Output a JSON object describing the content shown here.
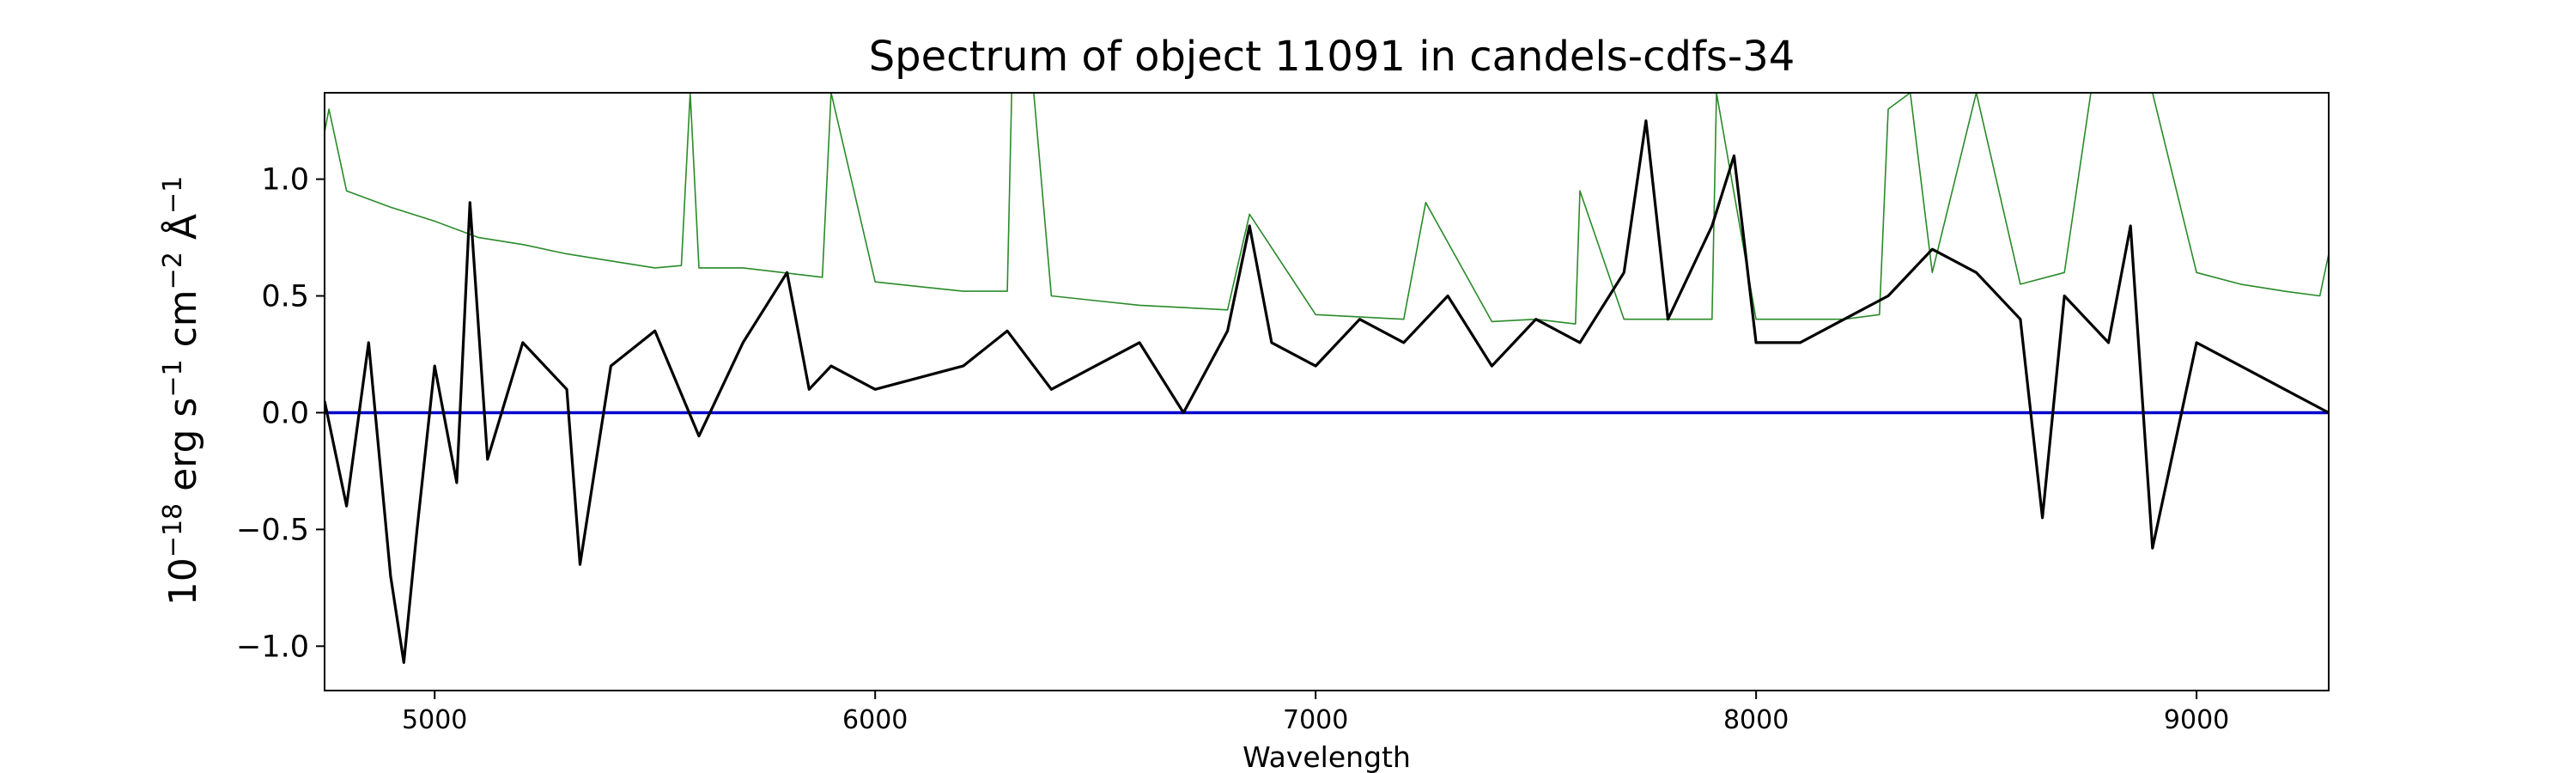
{
  "chart_data": {
    "type": "line",
    "title": "Spectrum of object 11091 in candels-cdfs-34",
    "xlabel": "Wavelength",
    "ylabel": {
      "base": "10",
      "exp": "−18",
      "unit1": " erg s",
      "unit1_exp": "−1",
      "unit2": " cm",
      "unit2_exp": "−2",
      "unit3": " Å",
      "unit3_exp": "−1"
    },
    "xlim": [
      4750,
      9300
    ],
    "ylim": [
      -1.19,
      1.37
    ],
    "xticks": [
      5000,
      6000,
      7000,
      8000,
      9000
    ],
    "xtick_labels": [
      "5000",
      "6000",
      "7000",
      "8000",
      "9000"
    ],
    "yticks": [
      -1.0,
      -0.5,
      0.0,
      0.5,
      1.0
    ],
    "ytick_labels": [
      "−1.0",
      "−0.5",
      "0.0",
      "0.5",
      "1.0"
    ],
    "grid": false,
    "colors": {
      "flux": "#000000",
      "error": "#2a8a2a",
      "zero": "#0000cc"
    },
    "series": [
      {
        "role": "flux",
        "x": [
          4750,
          4800,
          4850,
          4900,
          4930,
          4960,
          5000,
          5050,
          5080,
          5120,
          5200,
          5300,
          5330,
          5400,
          5500,
          5600,
          5700,
          5800,
          5850,
          5900,
          6000,
          6100,
          6200,
          6300,
          6400,
          6500,
          6600,
          6700,
          6800,
          6850,
          6900,
          7000,
          7100,
          7200,
          7300,
          7400,
          7500,
          7600,
          7700,
          7750,
          7800,
          7900,
          7950,
          8000,
          8100,
          8200,
          8300,
          8400,
          8500,
          8600,
          8650,
          8700,
          8800,
          8850,
          8900,
          9000,
          9100,
          9200,
          9300
        ],
        "y": [
          0.05,
          -0.4,
          0.3,
          -0.7,
          -1.07,
          -0.5,
          0.2,
          -0.3,
          0.9,
          -0.2,
          0.3,
          0.1,
          -0.65,
          0.2,
          0.35,
          -0.1,
          0.3,
          0.6,
          0.1,
          0.2,
          0.1,
          0.15,
          0.2,
          0.35,
          0.1,
          0.2,
          0.3,
          0.0,
          0.35,
          0.8,
          0.3,
          0.2,
          0.4,
          0.3,
          0.5,
          0.2,
          0.4,
          0.3,
          0.6,
          1.25,
          0.4,
          0.8,
          1.1,
          0.3,
          0.3,
          0.4,
          0.5,
          0.7,
          0.6,
          0.4,
          -0.45,
          0.5,
          0.3,
          0.8,
          -0.58,
          0.3,
          0.2,
          0.1,
          0.0
        ]
      },
      {
        "role": "error",
        "x": [
          4750,
          4760,
          4800,
          4900,
          5000,
          5100,
          5200,
          5300,
          5400,
          5500,
          5560,
          5580,
          5600,
          5700,
          5880,
          5900,
          6000,
          6100,
          6200,
          6300,
          6310,
          6360,
          6400,
          6500,
          6600,
          6700,
          6800,
          6850,
          7000,
          7200,
          7250,
          7400,
          7500,
          7590,
          7600,
          7700,
          7900,
          7910,
          8000,
          8100,
          8200,
          8280,
          8300,
          8350,
          8400,
          8500,
          8600,
          8700,
          8760,
          8800,
          8900,
          9000,
          9100,
          9200,
          9280,
          9300
        ],
        "y": [
          1.2,
          1.3,
          0.95,
          0.88,
          0.82,
          0.75,
          0.72,
          0.68,
          0.65,
          0.62,
          0.63,
          1.37,
          0.62,
          0.62,
          0.58,
          1.37,
          0.56,
          0.54,
          0.52,
          0.52,
          1.37,
          1.37,
          0.5,
          0.48,
          0.46,
          0.45,
          0.44,
          0.85,
          0.42,
          0.4,
          0.9,
          0.39,
          0.4,
          0.38,
          0.95,
          0.4,
          0.4,
          1.37,
          0.4,
          0.4,
          0.4,
          0.42,
          1.3,
          1.37,
          0.6,
          1.37,
          0.55,
          0.6,
          1.37,
          1.37,
          1.37,
          0.6,
          0.55,
          0.52,
          0.5,
          0.68
        ]
      },
      {
        "role": "zero",
        "x": [
          4750,
          9300
        ],
        "y": [
          0.0,
          0.0
        ]
      }
    ]
  }
}
